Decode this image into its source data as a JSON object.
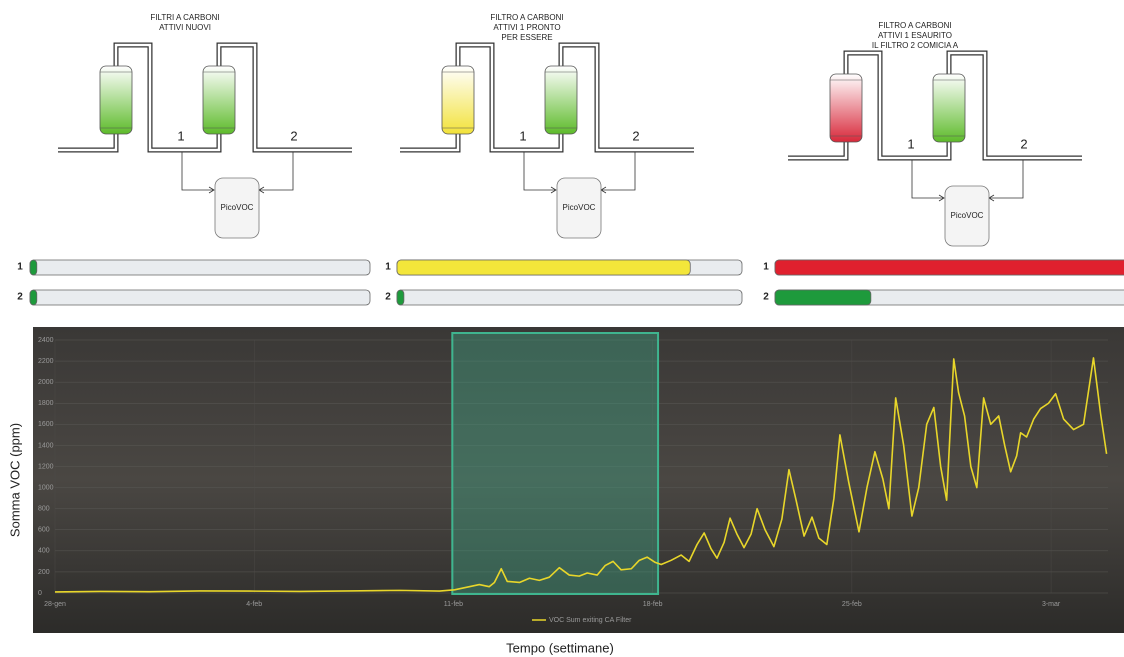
{
  "panels": [
    {
      "title": [
        "FILTRI A CARBONI",
        "ATTIVI NUOVI"
      ],
      "port_labels": [
        "1",
        "2"
      ],
      "analyzer": "PicoVOC",
      "tanks": [
        "#5dbb2a",
        "#5dbb2a"
      ],
      "bars": [
        {
          "label": "1",
          "value": 2,
          "color": "#1e9a3c"
        },
        {
          "label": "2",
          "value": 2,
          "color": "#1e9a3c"
        }
      ]
    },
    {
      "title": [
        "FILTRO  A CARBONI",
        "ATTIVI 1 PRONTO",
        "PER ESSERE"
      ],
      "port_labels": [
        "1",
        "2"
      ],
      "analyzer": "PicoVOC",
      "tanks": [
        "#f2e23a",
        "#5dbb2a"
      ],
      "bars": [
        {
          "label": "1",
          "value": 85,
          "color": "#f3e63a"
        },
        {
          "label": "2",
          "value": 2,
          "color": "#1e9a3c"
        }
      ]
    },
    {
      "title": [
        "FILTRO A CARBONI",
        "ATTIVI 1 ESAURITO",
        "IL FILTRO 2 COMICIA A"
      ],
      "port_labels": [
        "1",
        "2"
      ],
      "analyzer": "PicoVOC",
      "tanks": [
        "#d8283a",
        "#5dbb2a"
      ],
      "bars": [
        {
          "label": "1",
          "value": 100,
          "color": "#e0202e"
        },
        {
          "label": "2",
          "value": 27,
          "color": "#1e9a3c"
        }
      ]
    }
  ],
  "chart_data": {
    "type": "line",
    "y_label": "Somma VOC (ppm)",
    "x_label": "Tempo (settimane)",
    "xlim": [
      0,
      37
    ],
    "xticks": [
      {
        "value": 0,
        "label": "28-gen"
      },
      {
        "value": 7,
        "label": "4-feb"
      },
      {
        "value": 14,
        "label": "11-feb"
      },
      {
        "value": 21,
        "label": "18-feb"
      },
      {
        "value": 28,
        "label": "25-feb"
      },
      {
        "value": 35,
        "label": "3-mar"
      }
    ],
    "ylim": [
      0,
      2400
    ],
    "yticks": [
      0,
      200,
      400,
      600,
      800,
      1000,
      1200,
      1400,
      1600,
      1800,
      2000,
      2200,
      2400
    ],
    "grid": true,
    "highlight": {
      "x": [
        13.96,
        21.19
      ],
      "color": "#3fb58f"
    },
    "series": [
      {
        "name": "VOC Sum exiting CA Filter",
        "color": "#e8d62a",
        "x": [
          0,
          1.58,
          3.33,
          5.09,
          6.84,
          8.6,
          10.35,
          12.11,
          13.51,
          14.04,
          14.56,
          14.91,
          15.26,
          15.44,
          15.68,
          15.89,
          16.32,
          16.67,
          17.02,
          17.37,
          17.72,
          18.07,
          18.42,
          18.7,
          19.05,
          19.33,
          19.61,
          19.89,
          20.25,
          20.53,
          20.81,
          21.09,
          21.3,
          21.65,
          22.0,
          22.28,
          22.56,
          22.81,
          23.05,
          23.26,
          23.51,
          23.72,
          23.96,
          24.21,
          24.46,
          24.67,
          24.95,
          25.26,
          25.54,
          25.79,
          26.04,
          26.32,
          26.6,
          26.84,
          27.12,
          27.37,
          27.58,
          27.89,
          28.25,
          28.53,
          28.81,
          29.09,
          29.3,
          29.54,
          29.82,
          30.11,
          30.35,
          30.63,
          30.88,
          31.12,
          31.33,
          31.58,
          31.75,
          31.96,
          32.18,
          32.39,
          32.63,
          32.88,
          33.16,
          33.37,
          33.58,
          33.79,
          33.93,
          34.14,
          34.39,
          34.63,
          34.91,
          35.16,
          35.44,
          35.79,
          36.14,
          36.49,
          36.74,
          36.95
        ],
        "values": [
          10,
          15,
          12,
          20,
          18,
          15,
          20,
          25,
          18,
          30,
          60,
          80,
          60,
          100,
          230,
          110,
          100,
          140,
          120,
          150,
          240,
          170,
          160,
          190,
          170,
          260,
          300,
          220,
          230,
          310,
          340,
          290,
          270,
          310,
          360,
          300,
          460,
          570,
          420,
          330,
          480,
          710,
          560,
          430,
          560,
          800,
          600,
          440,
          700,
          1170,
          880,
          540,
          720,
          520,
          460,
          900,
          1500,
          1050,
          580,
          1000,
          1340,
          1080,
          800,
          1850,
          1400,
          730,
          1000,
          1600,
          1760,
          1200,
          880,
          2220,
          1900,
          1680,
          1200,
          1000,
          1850,
          1600,
          1680,
          1400,
          1150,
          1300,
          1520,
          1480,
          1650,
          1750,
          1800,
          1890,
          1650,
          1550,
          1600,
          2230,
          1700,
          1320
        ]
      }
    ]
  }
}
